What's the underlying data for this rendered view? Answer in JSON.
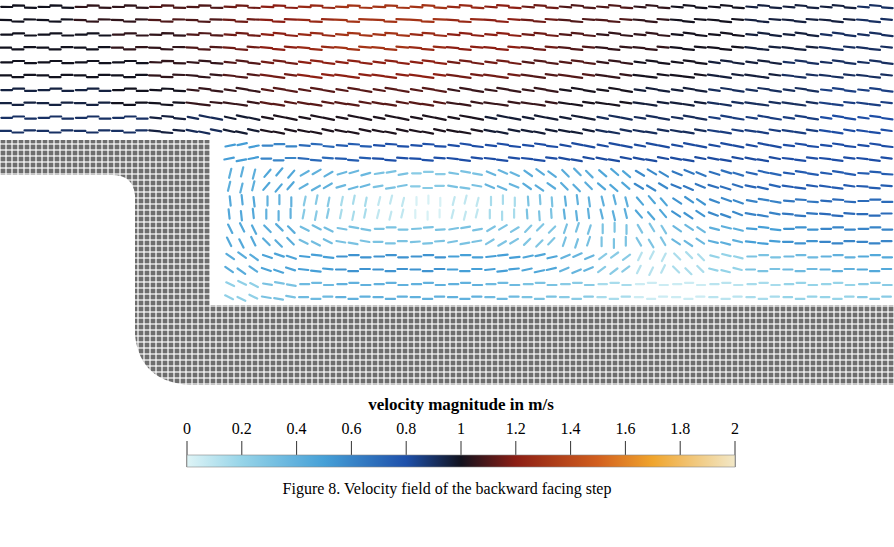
{
  "chart_data": {
    "type": "vector_field",
    "caption": "Figure 8. Velocity field of the backward facing step",
    "colorbar": {
      "label": "velocity magnitude in m/s",
      "range": [
        0,
        2
      ],
      "ticks": [
        0,
        0.2,
        0.4,
        0.6,
        0.8,
        1,
        1.2,
        1.4,
        1.6,
        1.8,
        2
      ]
    },
    "field": {
      "u": [
        [
          1.0,
          1.0,
          1.05,
          1.05,
          1.1,
          1.1,
          1.15,
          1.2,
          1.25,
          1.3,
          1.3,
          1.3,
          1.25,
          1.2,
          1.15,
          1.1,
          1.1,
          1.05,
          1.0,
          1.0,
          0.95,
          0.95,
          0.95,
          0.9
        ],
        [
          1.0,
          1.0,
          1.0,
          1.05,
          1.05,
          1.1,
          1.15,
          1.2,
          1.25,
          1.3,
          1.3,
          1.25,
          1.2,
          1.2,
          1.15,
          1.1,
          1.05,
          1.05,
          1.0,
          1.0,
          0.95,
          0.95,
          0.9,
          0.9
        ],
        [
          1.0,
          1.0,
          1.0,
          1.0,
          1.05,
          1.05,
          1.1,
          1.15,
          1.2,
          1.2,
          1.2,
          1.2,
          1.15,
          1.15,
          1.1,
          1.1,
          1.05,
          1.0,
          1.0,
          0.95,
          0.95,
          0.9,
          0.9,
          0.9
        ],
        [
          0.95,
          0.95,
          0.95,
          1.0,
          1.0,
          1.05,
          1.05,
          1.1,
          1.1,
          1.1,
          1.1,
          1.1,
          1.05,
          1.05,
          1.05,
          1.0,
          1.0,
          0.95,
          0.95,
          0.9,
          0.9,
          0.9,
          0.85,
          0.85
        ],
        [
          0.9,
          0.9,
          0.9,
          0.9,
          0.95,
          0.9,
          0.95,
          1.0,
          1.0,
          1.0,
          1.0,
          1.0,
          1.0,
          0.95,
          0.95,
          0.95,
          0.9,
          0.9,
          0.9,
          0.85,
          0.85,
          0.85,
          0.8,
          0.8
        ],
        [
          null,
          null,
          null,
          null,
          null,
          null,
          0.5,
          0.6,
          0.7,
          0.75,
          0.8,
          0.8,
          0.8,
          0.8,
          0.8,
          0.8,
          0.8,
          0.8,
          0.8,
          0.8,
          0.8,
          0.8,
          0.8,
          0.8
        ],
        [
          null,
          null,
          null,
          null,
          null,
          null,
          0.1,
          0.3,
          0.35,
          0.35,
          0.3,
          0.25,
          0.3,
          0.35,
          0.35,
          0.3,
          0.35,
          0.5,
          0.6,
          0.65,
          0.7,
          0.75,
          0.75,
          0.75
        ],
        [
          null,
          null,
          null,
          null,
          null,
          null,
          -0.05,
          0,
          0.05,
          0.03,
          0.02,
          0,
          -0.02,
          0,
          0.02,
          0.05,
          0.1,
          0.3,
          0.45,
          0.55,
          0.6,
          0.65,
          0.7,
          0.7
        ],
        [
          null,
          null,
          null,
          null,
          null,
          null,
          -0.2,
          -0.3,
          -0.3,
          -0.3,
          -0.3,
          -0.3,
          -0.3,
          -0.25,
          -0.2,
          -0.1,
          0,
          0.15,
          0.3,
          0.4,
          0.5,
          0.55,
          0.6,
          0.6
        ],
        [
          null,
          null,
          null,
          null,
          null,
          null,
          -0.35,
          -0.45,
          -0.5,
          -0.55,
          -0.55,
          -0.55,
          -0.5,
          -0.5,
          -0.45,
          -0.35,
          -0.2,
          -0.05,
          0.1,
          0.2,
          0.3,
          0.35,
          0.4,
          0.45
        ],
        [
          null,
          null,
          null,
          null,
          null,
          null,
          -0.2,
          -0.3,
          -0.35,
          -0.4,
          -0.4,
          -0.4,
          -0.4,
          -0.35,
          -0.3,
          -0.25,
          -0.15,
          -0.05,
          0.05,
          0.1,
          0.15,
          0.2,
          0.2,
          0.25
        ]
      ],
      "v": [
        [
          -0.02,
          -0.02,
          -0.02,
          -0.02,
          -0.02,
          -0.03,
          -0.05,
          -0.05,
          -0.05,
          -0.06,
          -0.06,
          -0.07,
          -0.07,
          -0.08,
          -0.08,
          -0.08,
          -0.08,
          -0.08,
          -0.08,
          -0.08,
          -0.08,
          -0.08,
          -0.08,
          -0.08
        ],
        [
          0,
          0,
          0,
          0,
          -0.02,
          -0.05,
          -0.08,
          -0.1,
          -0.1,
          -0.1,
          -0.1,
          -0.1,
          -0.1,
          -0.1,
          -0.1,
          -0.1,
          -0.1,
          -0.1,
          -0.1,
          -0.1,
          -0.1,
          -0.1,
          -0.1,
          -0.1
        ],
        [
          0,
          0,
          0,
          0,
          -0.03,
          -0.08,
          -0.12,
          -0.14,
          -0.15,
          -0.15,
          -0.15,
          -0.15,
          -0.15,
          -0.15,
          -0.14,
          -0.14,
          -0.13,
          -0.12,
          -0.12,
          -0.12,
          -0.12,
          -0.1,
          -0.1,
          -0.1
        ],
        [
          0,
          0,
          0,
          0,
          -0.05,
          -0.12,
          -0.16,
          -0.18,
          -0.18,
          -0.18,
          -0.18,
          -0.18,
          -0.17,
          -0.16,
          -0.16,
          -0.15,
          -0.15,
          -0.14,
          -0.14,
          -0.13,
          -0.12,
          -0.12,
          -0.1,
          -0.1
        ],
        [
          0,
          0,
          0,
          0,
          -0.08,
          -0.18,
          -0.2,
          -0.2,
          -0.2,
          -0.2,
          -0.2,
          -0.2,
          -0.18,
          -0.18,
          -0.18,
          -0.17,
          -0.16,
          -0.15,
          -0.15,
          -0.14,
          -0.13,
          -0.12,
          -0.12,
          -0.1
        ],
        [
          null,
          null,
          null,
          null,
          null,
          null,
          0.1,
          0,
          -0.05,
          -0.05,
          -0.05,
          -0.05,
          -0.1,
          -0.1,
          -0.1,
          -0.15,
          -0.15,
          -0.15,
          -0.15,
          -0.15,
          -0.15,
          -0.1,
          -0.1,
          -0.1
        ],
        [
          null,
          null,
          null,
          null,
          null,
          null,
          0.4,
          0.35,
          0.2,
          0.1,
          0.05,
          0,
          -0.05,
          -0.15,
          -0.25,
          -0.3,
          -0.3,
          -0.3,
          -0.25,
          -0.2,
          -0.15,
          -0.1,
          -0.1,
          -0.05
        ],
        [
          null,
          null,
          null,
          null,
          null,
          null,
          0.45,
          0.4,
          0.25,
          0.15,
          0.08,
          0.02,
          -0.08,
          -0.15,
          -0.3,
          -0.4,
          -0.4,
          -0.35,
          -0.3,
          -0.2,
          -0.1,
          -0.05,
          -0.05,
          0
        ],
        [
          null,
          null,
          null,
          null,
          null,
          null,
          0.4,
          0.3,
          0.15,
          0.05,
          0,
          -0.02,
          -0.05,
          -0.15,
          -0.2,
          -0.3,
          -0.3,
          -0.25,
          -0.2,
          -0.1,
          -0.05,
          0,
          0,
          0
        ],
        [
          null,
          null,
          null,
          null,
          null,
          null,
          0.25,
          0.15,
          0.05,
          0,
          0,
          0,
          0,
          -0.05,
          -0.1,
          -0.15,
          -0.15,
          -0.1,
          -0.1,
          -0.05,
          0,
          0,
          0,
          0
        ],
        [
          null,
          null,
          null,
          null,
          null,
          null,
          0.1,
          0.05,
          0,
          0,
          0,
          0,
          0,
          0,
          0,
          0,
          0,
          0,
          0,
          0,
          0,
          0,
          0,
          0
        ]
      ]
    }
  }
}
